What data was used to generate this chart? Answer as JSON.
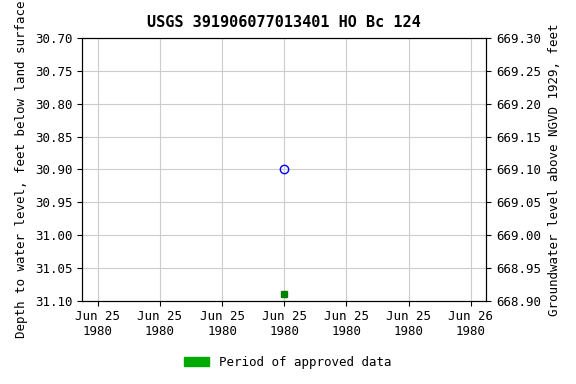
{
  "title": "USGS 391906077013401 HO Bc 124",
  "ylabel_left": "Depth to water level, feet below land surface",
  "ylabel_right": "Groundwater level above NGVD 1929, feet",
  "xlabel": "",
  "ylim_left": [
    30.7,
    31.1
  ],
  "ylim_right": [
    668.9,
    669.3
  ],
  "yticks_left": [
    30.7,
    30.75,
    30.8,
    30.85,
    30.9,
    30.95,
    31.0,
    31.05,
    31.1
  ],
  "yticks_right": [
    669.3,
    669.25,
    669.2,
    669.15,
    669.1,
    669.05,
    669.0,
    668.95,
    668.9
  ],
  "data_point_circle": {
    "date": "1980-06-25",
    "value": 30.9,
    "color": "blue",
    "marker": "o",
    "fillstyle": "none"
  },
  "data_point_square": {
    "date": "1980-06-25",
    "value": 31.09,
    "color": "green",
    "marker": "s",
    "fillstyle": "full"
  },
  "x_start": "1980-06-25",
  "x_end": "1980-06-26",
  "xtick_dates": [
    "1980-06-25",
    "1980-06-25",
    "1980-06-25",
    "1980-06-25",
    "1980-06-25",
    "1980-06-25",
    "1980-06-26"
  ],
  "background_color": "#ffffff",
  "grid_color": "#cccccc",
  "legend_label": "Period of approved data",
  "legend_color": "#00aa00",
  "font_family": "monospace",
  "title_fontsize": 11,
  "label_fontsize": 9,
  "tick_fontsize": 9
}
